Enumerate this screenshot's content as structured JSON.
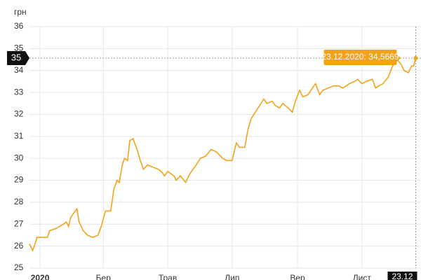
{
  "chart_data": {
    "type": "line",
    "y_label": "грн",
    "x": [
      -9,
      -6,
      -3,
      -2,
      8,
      10,
      16,
      23,
      26,
      28,
      30,
      33,
      36,
      38,
      42,
      46,
      51,
      56,
      59,
      63,
      68,
      71,
      74,
      76,
      79,
      81,
      84,
      86,
      89,
      93,
      96,
      99,
      103,
      108,
      113,
      116,
      119,
      122,
      128,
      130,
      134,
      139,
      143,
      149,
      153,
      158,
      163,
      168,
      174,
      178,
      183,
      187,
      190,
      195,
      198,
      201,
      205,
      209,
      213,
      216,
      221,
      224,
      228,
      231,
      236,
      240,
      243,
      247,
      250,
      255,
      259,
      262,
      266,
      269,
      274,
      279,
      284,
      288,
      294,
      299,
      302,
      306,
      310,
      316,
      319,
      322,
      326,
      331,
      335,
      339,
      343,
      346,
      350,
      353,
      355,
      357
    ],
    "series": [
      {
        "name": "грн",
        "color": "#f2a31b",
        "values": [
          26.1,
          25.8,
          26.2,
          26.4,
          26.4,
          26.7,
          26.8,
          27.0,
          27.1,
          26.9,
          27.3,
          27.5,
          27.7,
          27.1,
          26.7,
          26.5,
          26.4,
          26.5,
          26.9,
          27.6,
          27.6,
          28.6,
          29.0,
          28.9,
          29.7,
          30.0,
          29.9,
          30.8,
          30.9,
          30.4,
          29.9,
          29.5,
          29.7,
          29.6,
          29.5,
          29.4,
          29.2,
          29.4,
          29.2,
          29.0,
          29.2,
          28.9,
          29.3,
          29.7,
          30.0,
          30.1,
          30.4,
          30.3,
          30.0,
          29.9,
          29.9,
          30.7,
          30.5,
          30.5,
          31.3,
          31.8,
          32.1,
          32.4,
          32.7,
          32.5,
          32.6,
          32.4,
          32.3,
          32.5,
          32.3,
          32.1,
          32.6,
          33.1,
          32.8,
          32.9,
          33.2,
          33.4,
          32.9,
          33.1,
          33.2,
          33.3,
          33.3,
          33.2,
          33.4,
          33.5,
          33.6,
          33.4,
          33.5,
          33.6,
          33.2,
          33.3,
          33.4,
          33.7,
          34.2,
          34.5,
          34.3,
          34.0,
          33.9,
          34.2,
          34.2,
          34.5669
        ]
      }
    ],
    "xlim": [
      -9,
      362
    ],
    "xticks": [
      {
        "value": 1,
        "label": "2020"
      },
      {
        "value": 61,
        "label": "Бер"
      },
      {
        "value": 122,
        "label": "Трав"
      },
      {
        "value": 183,
        "label": "Лип"
      },
      {
        "value": 245,
        "label": "Вер"
      },
      {
        "value": 306,
        "label": "Лист"
      }
    ],
    "ylim": [
      25,
      36
    ],
    "yticks": [
      25,
      26,
      27,
      28,
      29,
      30,
      31,
      32,
      33,
      34,
      35,
      36
    ],
    "grid": true,
    "crosshair": {
      "y_label": "35",
      "x_label": "23.12",
      "tooltip": "23.12.2020: 34,5669",
      "x": 357,
      "y": 34.5669
    }
  }
}
